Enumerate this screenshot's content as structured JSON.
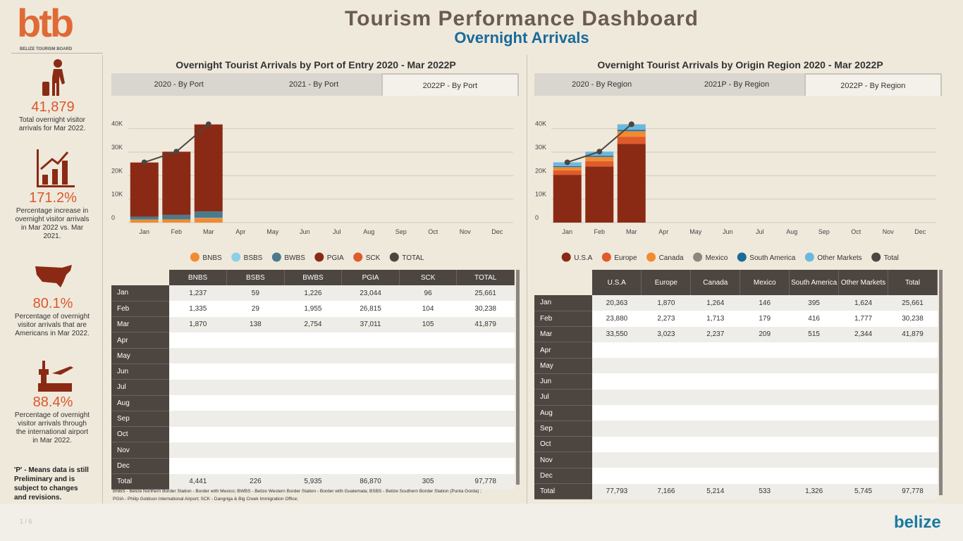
{
  "header": {
    "title": "Tourism Performance Dashboard",
    "subtitle": "Overnight Arrivals"
  },
  "logo": {
    "text": "btb",
    "caption": "BELIZE TOURISM BOARD"
  },
  "kpis": [
    {
      "value": "41,879",
      "text": "Total overnight visitor arrivals for Mar 2022."
    },
    {
      "value": "171.2%",
      "text": "Percentage increase in overnight visitor arrivals in Mar 2022 vs. Mar 2021."
    },
    {
      "value": "80.1%",
      "text": "Percentage of overnight visitor arrivals that are Americans in Mar 2022."
    },
    {
      "value": "88.4%",
      "text": "Percentage of overnight visitor arrivals through the international airport in Mar 2022."
    }
  ],
  "note": {
    "mark": "'P'",
    "text": " - Means data is still Preliminary and is subject to changes and revisions."
  },
  "chart_data": [
    {
      "type": "bar",
      "stacked": true,
      "title": "Overnight Tourist Arrivals by Port of Entry 2020 - Mar 2022P",
      "categories": [
        "Jan",
        "Feb",
        "Mar",
        "Apr",
        "May",
        "Jun",
        "Jul",
        "Aug",
        "Sep",
        "Oct",
        "Nov",
        "Dec"
      ],
      "ylim": [
        0,
        45000
      ],
      "yticks": [
        0,
        {
          "value": 10000,
          "label": "10K"
        },
        {
          "value": 20000,
          "label": "20K"
        },
        {
          "value": 30000,
          "label": "30K"
        },
        {
          "value": 40000,
          "label": "40K"
        }
      ],
      "grid": true,
      "series": [
        {
          "name": "BNBS",
          "color": "#f28b30",
          "values": [
            1237,
            1335,
            1870,
            null,
            null,
            null,
            null,
            null,
            null,
            null,
            null,
            null
          ]
        },
        {
          "name": "BSBS",
          "color": "#8ecfe8",
          "values": [
            59,
            29,
            138,
            null,
            null,
            null,
            null,
            null,
            null,
            null,
            null,
            null
          ]
        },
        {
          "name": "BWBS",
          "color": "#4a7a8c",
          "values": [
            1226,
            1955,
            2754,
            null,
            null,
            null,
            null,
            null,
            null,
            null,
            null,
            null
          ]
        },
        {
          "name": "PGIA",
          "color": "#8b2a14",
          "values": [
            23044,
            26815,
            37011,
            null,
            null,
            null,
            null,
            null,
            null,
            null,
            null,
            null
          ]
        },
        {
          "name": "SCK",
          "color": "#e05a2b",
          "values": [
            96,
            104,
            105,
            null,
            null,
            null,
            null,
            null,
            null,
            null,
            null,
            null
          ]
        },
        {
          "name": "TOTAL",
          "type": "line",
          "color": "#4d4540",
          "values": [
            25661,
            30238,
            41879,
            null,
            null,
            null,
            null,
            null,
            null,
            null,
            null,
            null
          ]
        }
      ]
    },
    {
      "type": "bar",
      "stacked": true,
      "title": "Overnight Tourist Arrivals by Origin Region 2020 - Mar 2022P",
      "categories": [
        "Jan",
        "Feb",
        "Mar",
        "Apr",
        "May",
        "Jun",
        "Jul",
        "Aug",
        "Sep",
        "Oct",
        "Nov",
        "Dec"
      ],
      "ylim": [
        0,
        45000
      ],
      "yticks": [
        0,
        {
          "value": 10000,
          "label": "10K"
        },
        {
          "value": 20000,
          "label": "20K"
        },
        {
          "value": 30000,
          "label": "30K"
        },
        {
          "value": 40000,
          "label": "40K"
        }
      ],
      "grid": true,
      "series": [
        {
          "name": "U.S.A",
          "color": "#8b2a14",
          "values": [
            20363,
            23880,
            33550,
            null,
            null,
            null,
            null,
            null,
            null,
            null,
            null,
            null
          ]
        },
        {
          "name": "Europe",
          "color": "#e05a2b",
          "values": [
            1870,
            2273,
            3023,
            null,
            null,
            null,
            null,
            null,
            null,
            null,
            null,
            null
          ]
        },
        {
          "name": "Canada",
          "color": "#f28b30",
          "values": [
            1264,
            1713,
            2237,
            null,
            null,
            null,
            null,
            null,
            null,
            null,
            null,
            null
          ]
        },
        {
          "name": "Mexico",
          "color": "#8c8580",
          "values": [
            146,
            179,
            209,
            null,
            null,
            null,
            null,
            null,
            null,
            null,
            null,
            null
          ]
        },
        {
          "name": "South America",
          "color": "#1a6a9a",
          "values": [
            395,
            416,
            515,
            null,
            null,
            null,
            null,
            null,
            null,
            null,
            null,
            null
          ]
        },
        {
          "name": "Other Markets",
          "color": "#6bb8de",
          "values": [
            1624,
            1777,
            2344,
            null,
            null,
            null,
            null,
            null,
            null,
            null,
            null,
            null
          ]
        },
        {
          "name": "Total",
          "type": "line",
          "color": "#4d4540",
          "values": [
            25661,
            30238,
            41879,
            null,
            null,
            null,
            null,
            null,
            null,
            null,
            null,
            null
          ]
        }
      ]
    }
  ],
  "panels": [
    {
      "tabs": [
        "2020 - By Port",
        "2021 - By Port",
        "2022P - By Port"
      ],
      "active_tab": 2,
      "table": {
        "columns": [
          "BNBS",
          "BSBS",
          "BWBS",
          "PGIA",
          "SCK",
          "TOTAL"
        ],
        "rows": [
          {
            "label": "Jan",
            "cells": [
              "1,237",
              "59",
              "1,226",
              "23,044",
              "96",
              "25,661"
            ]
          },
          {
            "label": "Feb",
            "cells": [
              "1,335",
              "29",
              "1,955",
              "26,815",
              "104",
              "30,238"
            ]
          },
          {
            "label": "Mar",
            "cells": [
              "1,870",
              "138",
              "2,754",
              "37,011",
              "105",
              "41,879"
            ]
          },
          {
            "label": "Apr",
            "cells": []
          },
          {
            "label": "May",
            "cells": []
          },
          {
            "label": "Jun",
            "cells": []
          },
          {
            "label": "Jul",
            "cells": []
          },
          {
            "label": "Aug",
            "cells": []
          },
          {
            "label": "Sep",
            "cells": []
          },
          {
            "label": "Oct",
            "cells": []
          },
          {
            "label": "Nov",
            "cells": []
          },
          {
            "label": "Dec",
            "cells": []
          },
          {
            "label": "Total",
            "cells": [
              "4,441",
              "226",
              "5,935",
              "86,870",
              "305",
              "97,778"
            ]
          }
        ]
      },
      "footnote": [
        "BNBS - Belize Northern Border Station - Border with Mexico;  BWBS - Belize Western Border Station - Border with Guatemala;  BSBS - Belize Southern Border Station  (Punta Gorda) ;",
        "PGIA - Philip Goldson International Airport;  SCK - Dangriga & Big Creek Immigration Office;"
      ]
    },
    {
      "tabs": [
        "2020 - By Region",
        "2021P - By Region",
        "2022P - By Region"
      ],
      "active_tab": 2,
      "table": {
        "columns": [
          "U.S.A",
          "Europe",
          "Canada",
          "Mexico",
          "South America",
          "Other Markets",
          "Total"
        ],
        "rows": [
          {
            "label": "Jan",
            "cells": [
              "20,363",
              "1,870",
              "1,264",
              "146",
              "395",
              "1,624",
              "25,661"
            ]
          },
          {
            "label": "Feb",
            "cells": [
              "23,880",
              "2,273",
              "1,713",
              "179",
              "416",
              "1,777",
              "30,238"
            ]
          },
          {
            "label": "Mar",
            "cells": [
              "33,550",
              "3,023",
              "2,237",
              "209",
              "515",
              "2,344",
              "41,879"
            ]
          },
          {
            "label": "Apr",
            "cells": []
          },
          {
            "label": "May",
            "cells": []
          },
          {
            "label": "Jun",
            "cells": []
          },
          {
            "label": "Jul",
            "cells": []
          },
          {
            "label": "Aug",
            "cells": []
          },
          {
            "label": "Sep",
            "cells": []
          },
          {
            "label": "Oct",
            "cells": []
          },
          {
            "label": "Nov",
            "cells": []
          },
          {
            "label": "Dec",
            "cells": []
          },
          {
            "label": "Total",
            "cells": [
              "77,793",
              "7,166",
              "5,214",
              "533",
              "1,326",
              "5,745",
              "97,778"
            ]
          }
        ]
      }
    }
  ],
  "footer": {
    "page": "1 / 6",
    "brand": "belize"
  }
}
